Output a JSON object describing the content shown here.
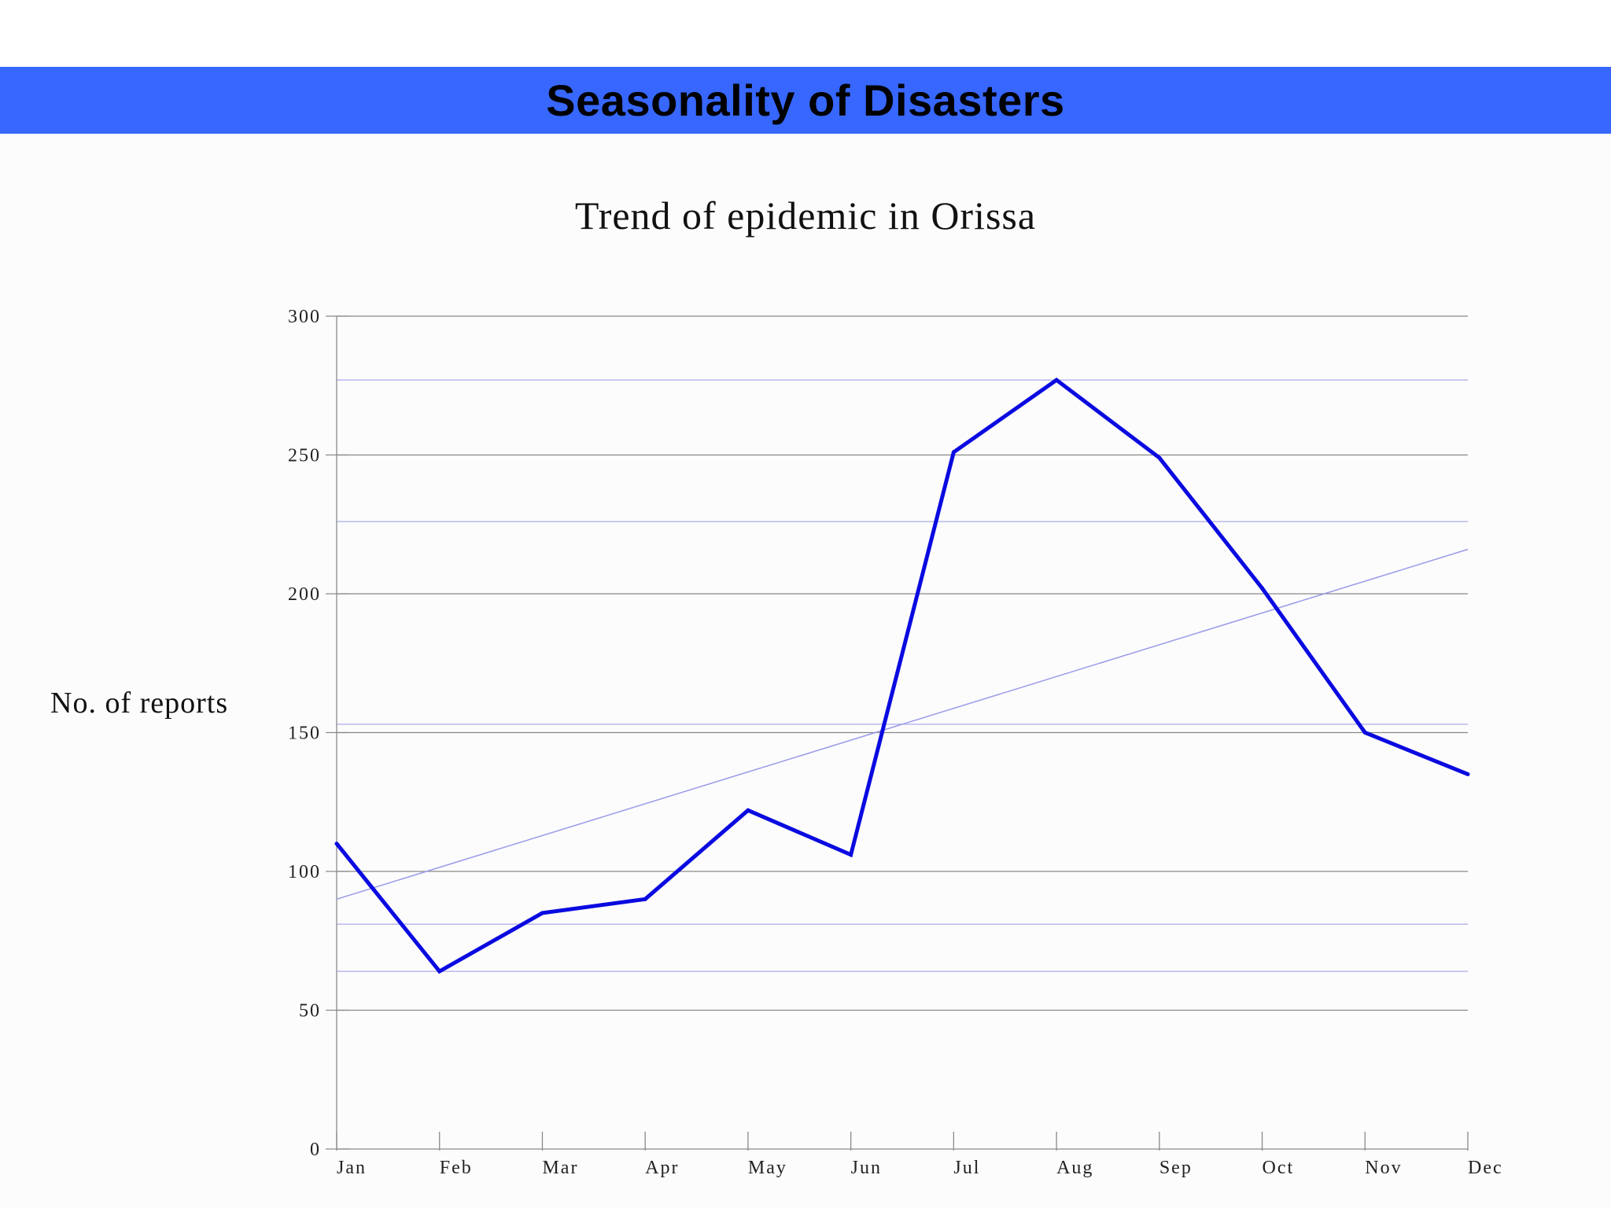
{
  "header": {
    "title": "Seasonality of Disasters"
  },
  "chart_data": {
    "type": "line",
    "title": "Trend of epidemic in Orissa",
    "xlabel": "",
    "ylabel": "No. of reports",
    "categories": [
      "Jan",
      "Feb",
      "Mar",
      "Apr",
      "May",
      "Jun",
      "Jul",
      "Aug",
      "Sep",
      "Oct",
      "Nov",
      "Dec"
    ],
    "series": [
      {
        "values": [
          110,
          64,
          85,
          90,
          122,
          106,
          251,
          277,
          249,
          202,
          150,
          135
        ],
        "color": "#0a0ae0"
      }
    ],
    "trendline": {
      "start": 90,
      "end": 216,
      "color": "#9a9ae8"
    },
    "reference_lines": [
      277,
      226,
      153,
      81,
      64
    ],
    "ylim": [
      0,
      300
    ],
    "yticks": [
      0,
      50,
      100,
      150,
      200,
      250,
      300
    ],
    "grid": true,
    "colors": {
      "title_bar": "#3767ff",
      "series": "#0a0ae0",
      "gridline": "#888888",
      "reference_line": "#b8b8ec"
    }
  }
}
